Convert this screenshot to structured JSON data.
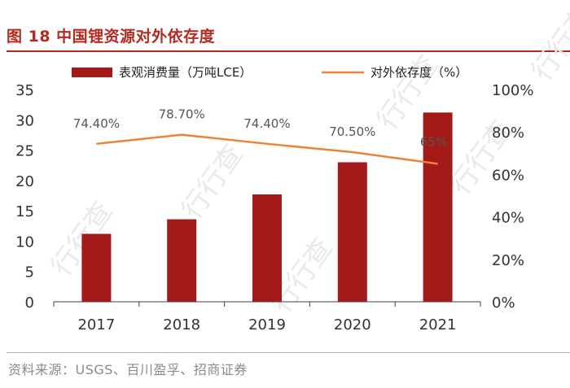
{
  "figure": {
    "title": "图 18 中国锂资源对外依存度",
    "source": "资料来源：USGS、百川盈孚、招商证券"
  },
  "watermark": "行行查",
  "colors": {
    "bar": "#a31a18",
    "line": "#e8853a",
    "title": "#b52a20",
    "axis": "#404040"
  },
  "chart_data": {
    "type": "bar+line",
    "categories": [
      "2017",
      "2018",
      "2019",
      "2020",
      "2021"
    ],
    "series": [
      {
        "name": "表观消费量（万吨LCE）",
        "type": "bar",
        "axis": "left",
        "values": [
          11.2,
          13.6,
          17.7,
          23.0,
          31.2
        ]
      },
      {
        "name": "对外依存度（%）",
        "type": "line",
        "axis": "right",
        "values": [
          74.4,
          78.7,
          74.4,
          70.5,
          65
        ],
        "labels": [
          "74.40%",
          "78.70%",
          "74.40%",
          "70.50%",
          "65%"
        ]
      }
    ],
    "y_left": {
      "min": 0,
      "max": 35,
      "ticks": [
        "0",
        "5",
        "10",
        "15",
        "20",
        "25",
        "30",
        "35"
      ]
    },
    "y_right": {
      "min": 0,
      "max": 100,
      "ticks": [
        "0%",
        "20%",
        "40%",
        "60%",
        "80%",
        "100%"
      ]
    },
    "legend_position": "top"
  }
}
